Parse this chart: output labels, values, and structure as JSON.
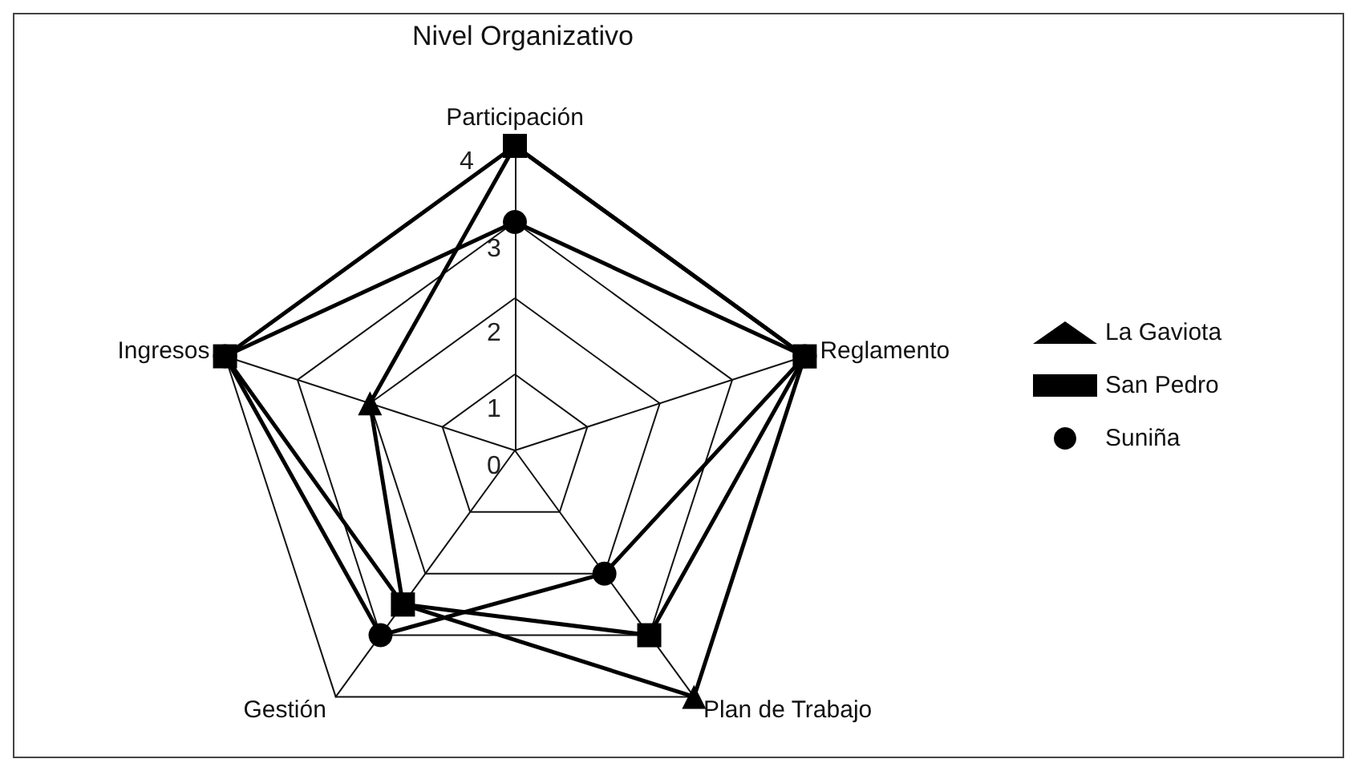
{
  "chart_data": {
    "type": "radar",
    "title": "Nivel Organizativo",
    "categories": [
      "Participación",
      "Reglamento",
      "Plan de Trabajo",
      "Gestión",
      "Ingresos"
    ],
    "ylim": [
      0,
      4
    ],
    "yticks": [
      0,
      1,
      2,
      3,
      4
    ],
    "grid": true,
    "legend": "right",
    "line_style": "solid",
    "series": [
      {
        "name": "La Gaviota",
        "color": "#000000",
        "marker": "triangle",
        "values": [
          4,
          4,
          4,
          2.5,
          2
        ]
      },
      {
        "name": "San Pedro",
        "color": "#000000",
        "marker": "square",
        "values": [
          4,
          4,
          3,
          2.5,
          4
        ]
      },
      {
        "name": "Suniña",
        "color": "#000000",
        "marker": "circle",
        "values": [
          3,
          4,
          2,
          3,
          4
        ]
      }
    ]
  }
}
